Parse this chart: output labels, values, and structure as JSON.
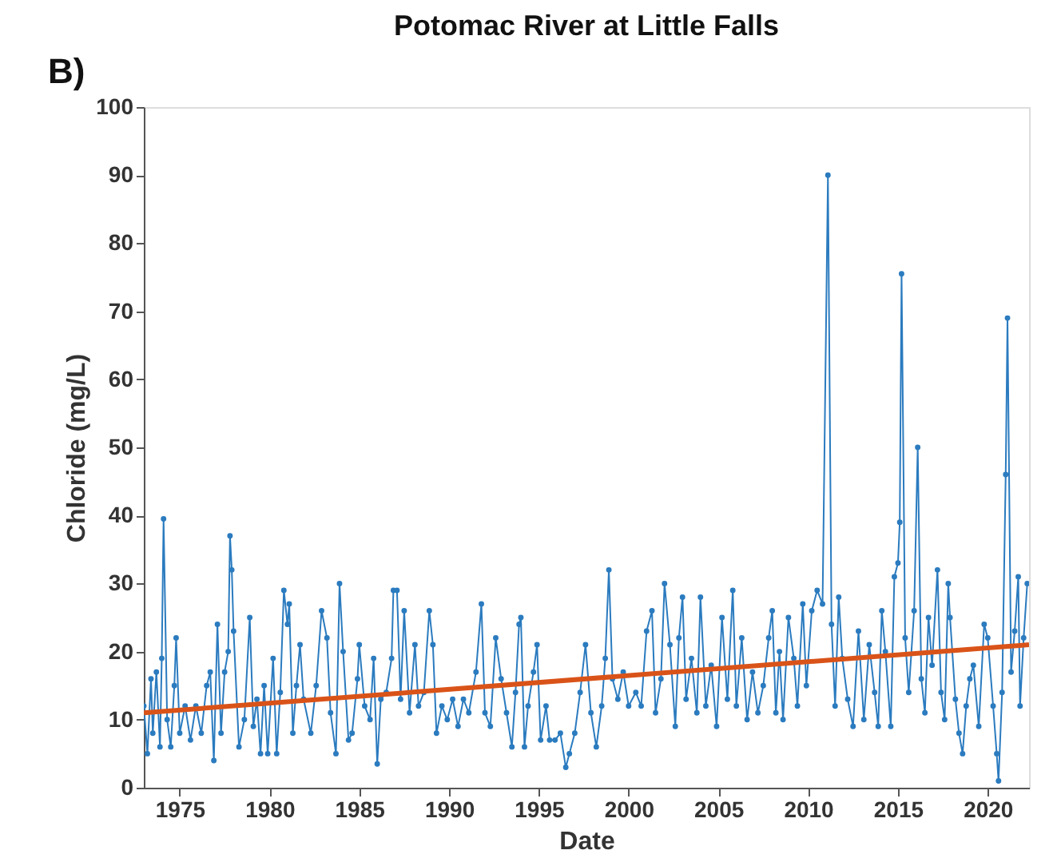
{
  "chart_data": {
    "type": "line",
    "title": "Potomac River at Little Falls",
    "xlabel": "Date",
    "ylabel": "Chloride (mg/L)",
    "annotations": [
      "B)"
    ],
    "xlim": [
      1973.0,
      2022.3
    ],
    "ylim": [
      0,
      100
    ],
    "xticks": [
      1975,
      1980,
      1985,
      1990,
      1995,
      2000,
      2005,
      2010,
      2015,
      2020
    ],
    "yticks": [
      0,
      10,
      20,
      30,
      40,
      50,
      60,
      70,
      80,
      90,
      100
    ],
    "grid": false,
    "series": [
      {
        "marker": "circle",
        "color": "#2b7bbf",
        "x": [
          1973.0,
          1973.2,
          1973.4,
          1973.5,
          1973.7,
          1973.9,
          1974.0,
          1974.1,
          1974.3,
          1974.5,
          1974.7,
          1974.8,
          1975.0,
          1975.3,
          1975.6,
          1975.9,
          1976.2,
          1976.5,
          1976.7,
          1976.9,
          1977.1,
          1977.3,
          1977.5,
          1977.7,
          1977.8,
          1977.9,
          1978.0,
          1978.3,
          1978.6,
          1978.9,
          1979.1,
          1979.3,
          1979.5,
          1979.7,
          1979.9,
          1980.2,
          1980.4,
          1980.6,
          1980.8,
          1981.0,
          1981.1,
          1981.3,
          1981.5,
          1981.7,
          1981.9,
          1982.3,
          1982.6,
          1982.9,
          1983.2,
          1983.4,
          1983.7,
          1983.9,
          1984.1,
          1984.4,
          1984.6,
          1984.9,
          1985.0,
          1985.3,
          1985.6,
          1985.8,
          1986.0,
          1986.2,
          1986.5,
          1986.8,
          1986.9,
          1987.1,
          1987.3,
          1987.5,
          1987.8,
          1988.1,
          1988.3,
          1988.6,
          1988.9,
          1989.1,
          1989.3,
          1989.6,
          1989.9,
          1990.2,
          1990.5,
          1990.8,
          1991.1,
          1991.5,
          1991.8,
          1992.0,
          1992.3,
          1992.6,
          1992.9,
          1993.2,
          1993.5,
          1993.7,
          1993.9,
          1994.0,
          1994.2,
          1994.4,
          1994.7,
          1994.9,
          1995.1,
          1995.4,
          1995.6,
          1995.9,
          1996.2,
          1996.5,
          1996.7,
          1997.0,
          1997.3,
          1997.6,
          1997.9,
          1998.2,
          1998.5,
          1998.7,
          1998.9,
          1999.1,
          1999.4,
          1999.7,
          2000.0,
          2000.4,
          2000.7,
          2001.0,
          2001.3,
          2001.5,
          2001.8,
          2002.0,
          2002.3,
          2002.6,
          2002.8,
          2003.0,
          2003.2,
          2003.5,
          2003.8,
          2004.0,
          2004.3,
          2004.6,
          2004.9,
          2005.2,
          2005.5,
          2005.8,
          2006.0,
          2006.3,
          2006.6,
          2006.9,
          2007.2,
          2007.5,
          2007.8,
          2008.0,
          2008.2,
          2008.4,
          2008.6,
          2008.9,
          2009.2,
          2009.4,
          2009.7,
          2009.9,
          2010.2,
          2010.5,
          2010.8,
          2011.1,
          2011.3,
          2011.5,
          2011.7,
          2011.9,
          2012.2,
          2012.5,
          2012.8,
          2013.1,
          2013.4,
          2013.7,
          2013.9,
          2014.1,
          2014.3,
          2014.6,
          2014.8,
          2015.0,
          2015.1,
          2015.2,
          2015.4,
          2015.6,
          2015.9,
          2016.1,
          2016.3,
          2016.5,
          2016.7,
          2016.9,
          2017.2,
          2017.4,
          2017.6,
          2017.8,
          2017.9,
          2018.2,
          2018.4,
          2018.6,
          2018.8,
          2019.0,
          2019.2,
          2019.5,
          2019.8,
          2020.0,
          2020.3,
          2020.5,
          2020.6,
          2020.8,
          2021.0,
          2021.1,
          2021.3,
          2021.5,
          2021.7,
          2021.8,
          2022.0,
          2022.2
        ],
        "values": [
          12,
          5,
          16,
          8,
          17,
          6,
          19,
          39.5,
          10,
          6,
          15,
          22,
          8,
          12,
          7,
          12,
          8,
          15,
          17,
          4,
          24,
          8,
          17,
          20,
          37,
          32,
          23,
          6,
          10,
          25,
          9,
          13,
          5,
          15,
          5,
          19,
          5,
          14,
          29,
          24,
          27,
          8,
          15,
          21,
          13,
          8,
          15,
          26,
          22,
          11,
          5,
          30,
          20,
          7,
          8,
          16,
          21,
          12,
          10,
          19,
          3.5,
          13,
          14,
          19,
          29,
          29,
          13,
          26,
          11,
          21,
          12,
          14,
          26,
          21,
          8,
          12,
          10,
          13,
          9,
          13,
          11,
          17,
          27,
          11,
          9,
          22,
          16,
          11,
          6,
          14,
          24,
          25,
          6,
          12,
          17,
          21,
          7,
          12,
          7,
          7,
          8,
          3,
          5,
          8,
          14,
          21,
          11,
          6,
          12,
          19,
          32,
          16,
          13,
          17,
          12,
          14,
          12,
          23,
          26,
          11,
          16,
          30,
          21,
          9,
          22,
          28,
          13,
          19,
          11,
          28,
          12,
          18,
          9,
          25,
          13,
          29,
          12,
          22,
          10,
          17,
          11,
          15,
          22,
          26,
          11,
          20,
          10,
          25,
          19,
          12,
          27,
          15,
          26,
          29,
          27,
          90,
          24,
          12,
          28,
          19,
          13,
          9,
          23,
          10,
          21,
          14,
          9,
          26,
          20,
          9,
          31,
          33,
          39,
          75.5,
          22,
          14,
          26,
          50,
          16,
          11,
          25,
          18,
          32,
          14,
          10,
          30,
          25,
          13,
          8,
          5,
          12,
          16,
          18,
          9,
          24,
          22,
          12,
          5,
          1,
          14,
          46,
          69,
          17,
          23,
          31,
          12,
          22,
          30
        ]
      },
      {
        "marker": "none",
        "color": "#d95319",
        "x": [
          1973.0,
          2022.3
        ],
        "values": [
          11,
          21
        ]
      }
    ]
  }
}
